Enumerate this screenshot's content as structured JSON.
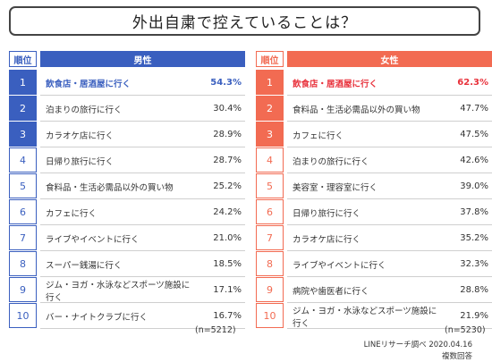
{
  "title": "外出自粛で控えていることは？",
  "rank_header": "順位",
  "male": {
    "header": "男性",
    "n_note": "(n=5212)",
    "accent": "#3a5fbf",
    "items": [
      {
        "rank": "1",
        "label": "飲食店・居酒屋に行く",
        "value": "54.3%"
      },
      {
        "rank": "2",
        "label": "泊まりの旅行に行く",
        "value": "30.4%"
      },
      {
        "rank": "3",
        "label": "カラオケ店に行く",
        "value": "28.9%"
      },
      {
        "rank": "4",
        "label": "日帰り旅行に行く",
        "value": "28.7%"
      },
      {
        "rank": "5",
        "label": "食料品・生活必需品以外の買い物",
        "value": "25.2%"
      },
      {
        "rank": "6",
        "label": "カフェに行く",
        "value": "24.2%"
      },
      {
        "rank": "7",
        "label": "ライブやイベントに行く",
        "value": "21.0%"
      },
      {
        "rank": "8",
        "label": "スーパー銭湯に行く",
        "value": "18.5%"
      },
      {
        "rank": "9",
        "label": "ジム・ヨガ・水泳などスポーツ施設に行く",
        "value": "17.1%"
      },
      {
        "rank": "10",
        "label": "バー・ナイトクラブに行く",
        "value": "16.7%"
      }
    ]
  },
  "female": {
    "header": "女性",
    "n_note": "(n=5230)",
    "accent": "#f26b52",
    "items": [
      {
        "rank": "1",
        "label": "飲食店・居酒屋に行く",
        "value": "62.3%"
      },
      {
        "rank": "2",
        "label": "食料品・生活必需品以外の買い物",
        "value": "47.7%"
      },
      {
        "rank": "3",
        "label": "カフェに行く",
        "value": "47.5%"
      },
      {
        "rank": "4",
        "label": "泊まりの旅行に行く",
        "value": "42.6%"
      },
      {
        "rank": "5",
        "label": "美容室・理容室に行く",
        "value": "39.0%"
      },
      {
        "rank": "6",
        "label": "日帰り旅行に行く",
        "value": "37.8%"
      },
      {
        "rank": "7",
        "label": "カラオケ店に行く",
        "value": "35.2%"
      },
      {
        "rank": "8",
        "label": "ライブやイベントに行く",
        "value": "32.3%"
      },
      {
        "rank": "9",
        "label": "病院や歯医者に行く",
        "value": "28.8%"
      },
      {
        "rank": "10",
        "label": "ジム・ヨガ・水泳などスポーツ施設に行く",
        "value": "21.9%"
      }
    ]
  },
  "footer": {
    "source": "LINEリサーチ調べ 2020.04.16",
    "note": "複数回答"
  },
  "chart_data": {
    "type": "table",
    "title": "外出自粛で控えていることは？",
    "columns": [
      "順位",
      "男性",
      "女性"
    ],
    "series": [
      {
        "name": "男性",
        "n": "(n=5212)",
        "categories": [
          "飲食店・居酒屋に行く",
          "泊まりの旅行に行く",
          "カラオケ店に行く",
          "日帰り旅行に行く",
          "食料品・生活必需品以外の買い物",
          "カフェに行く",
          "ライブやイベントに行く",
          "スーパー銭湯に行く",
          "ジム・ヨガ・水泳などスポーツ施設に行く",
          "バー・ナイトクラブに行く"
        ],
        "values": [
          54.3,
          30.4,
          28.9,
          28.7,
          25.2,
          24.2,
          21.0,
          18.5,
          17.1,
          16.7
        ]
      },
      {
        "name": "女性",
        "n": "(n=5230)",
        "categories": [
          "飲食店・居酒屋に行く",
          "食料品・生活必需品以外の買い物",
          "カフェに行く",
          "泊まりの旅行に行く",
          "美容室・理容室に行く",
          "日帰り旅行に行く",
          "カラオケ店に行く",
          "ライブやイベントに行く",
          "病院や歯医者に行く",
          "ジム・ヨガ・水泳などスポーツ施設に行く"
        ],
        "values": [
          62.3,
          47.7,
          47.5,
          42.6,
          39.0,
          37.8,
          35.2,
          32.3,
          28.8,
          21.9
        ]
      }
    ]
  }
}
